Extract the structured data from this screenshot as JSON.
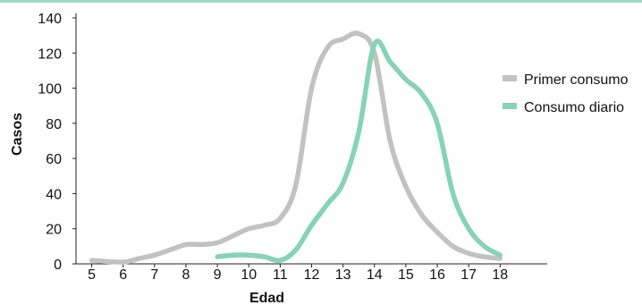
{
  "chart_data": {
    "type": "line",
    "title": "",
    "xlabel": "Edad",
    "ylabel": "Casos",
    "x_ticks": [
      "5",
      "6",
      "7",
      "8",
      "9",
      "10",
      "11",
      "12",
      "13",
      "14",
      "15",
      "16",
      "17",
      "18"
    ],
    "y_ticks": [
      "0",
      "20",
      "40",
      "60",
      "80",
      "100",
      "120",
      "140"
    ],
    "xlim": [
      4.5,
      19.5
    ],
    "ylim": [
      0,
      140
    ],
    "grid": false,
    "legend_position": "right",
    "series": [
      {
        "name": "Primer consumo",
        "color": "#c2c2c2",
        "x": [
          5,
          6,
          6.5,
          7,
          7.5,
          8,
          8.5,
          9,
          9.5,
          10,
          10.5,
          11,
          11.5,
          12,
          12.5,
          13,
          13.5,
          14,
          14.5,
          15,
          15.5,
          16,
          16.5,
          17,
          17.5,
          18
        ],
        "y": [
          2,
          1,
          3,
          5,
          8,
          11,
          11,
          12,
          16,
          20,
          22,
          26,
          45,
          100,
          123,
          128,
          131,
          120,
          70,
          44,
          28,
          18,
          10,
          6,
          4,
          3
        ]
      },
      {
        "name": "Consumo diario",
        "color": "#86d3b7",
        "x": [
          9,
          9.5,
          10,
          10.5,
          11,
          11.5,
          12,
          12.5,
          13,
          13.5,
          14,
          14.5,
          15,
          15.5,
          16,
          16.5,
          17,
          17.5,
          18
        ],
        "y": [
          4,
          5,
          5,
          4,
          2,
          8,
          22,
          34,
          46,
          75,
          125,
          115,
          105,
          97,
          80,
          40,
          20,
          10,
          5
        ]
      }
    ]
  }
}
